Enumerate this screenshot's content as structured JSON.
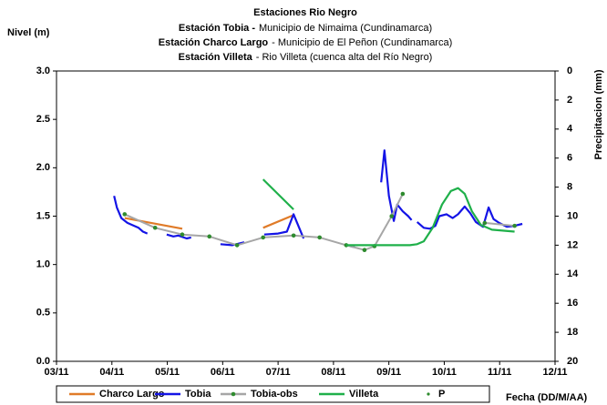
{
  "chart_data": {
    "type": "line",
    "title": "Estaciones Rio Negro",
    "subtitle": [
      {
        "station": "Estación Tobia -",
        "place": "Municipio de Nimaima (Cundinamarca)"
      },
      {
        "station": "Estación Charco Largo",
        "place": "- Municipio de El Peñon (Cundinamarca)"
      },
      {
        "station": "Estación Villeta",
        "place": "-  Rio Villeta (cuenca alta del Río Negro)"
      }
    ],
    "y_label": "Nivel (m)",
    "y2_label": "Precipitacion (mm)",
    "x_label": "Fecha (DD/M/AA)",
    "xlim": [
      3,
      12
    ],
    "xticks": [
      {
        "value": 3,
        "label": "03/11"
      },
      {
        "value": 4,
        "label": "04/11"
      },
      {
        "value": 5,
        "label": "05/11"
      },
      {
        "value": 6,
        "label": "06/11"
      },
      {
        "value": 7,
        "label": "07/11"
      },
      {
        "value": 8,
        "label": "08/11"
      },
      {
        "value": 9,
        "label": "09/11"
      },
      {
        "value": 10,
        "label": "10/11"
      },
      {
        "value": 11,
        "label": "11/11"
      },
      {
        "value": 12,
        "label": "12/11"
      }
    ],
    "ylim": [
      0,
      3
    ],
    "yticks": [
      {
        "value": 0,
        "label": "0.0"
      },
      0.5,
      {
        "value": 1,
        "label": "1.0"
      },
      1.5,
      {
        "value": 2,
        "label": "2.0"
      },
      2.5,
      {
        "value": 3,
        "label": "3.0"
      }
    ],
    "y2lim": [
      0,
      20
    ],
    "y2_inverted": true,
    "y2ticks": [
      0,
      2,
      4,
      6,
      8,
      10,
      12,
      14,
      16,
      18,
      20
    ],
    "series": [
      {
        "name": "Charco Largo",
        "color": "#e07b28",
        "x": [
          4.23,
          5.27,
          null,
          6.73,
          7.28
        ],
        "values": [
          1.48,
          1.37,
          null,
          1.38,
          1.51
        ]
      },
      {
        "name": "Tobia",
        "color": "#1414e6",
        "x": [
          4.04,
          4.09,
          4.17,
          4.28,
          4.4,
          4.48,
          4.56,
          4.64,
          null,
          4.99,
          5.11,
          5.2,
          5.35,
          5.43,
          null,
          5.96,
          6.17,
          6.39,
          null,
          6.75,
          7.0,
          7.16,
          7.28,
          7.46,
          null,
          8.31,
          8.38,
          null,
          8.86,
          8.92,
          9.0,
          9.09,
          9.15,
          9.25,
          9.35,
          9.41,
          null,
          9.51,
          9.63,
          9.74,
          9.84,
          9.91,
          10.04,
          10.15,
          10.25,
          10.37,
          10.47,
          10.57,
          10.7,
          10.8,
          10.89,
          10.99,
          11.13,
          11.27,
          11.41
        ],
        "values": [
          1.71,
          1.59,
          1.48,
          1.43,
          1.4,
          1.38,
          1.34,
          1.32,
          null,
          1.31,
          1.29,
          1.3,
          1.27,
          1.28,
          null,
          1.21,
          1.2,
          1.23,
          null,
          1.31,
          1.32,
          1.34,
          1.52,
          1.27,
          null,
          1.19,
          1.18,
          null,
          1.85,
          2.18,
          1.71,
          1.45,
          1.62,
          1.55,
          1.5,
          1.46,
          null,
          1.44,
          1.38,
          1.37,
          1.4,
          1.5,
          1.52,
          1.48,
          1.52,
          1.6,
          1.53,
          1.44,
          1.39,
          1.59,
          1.47,
          1.43,
          1.39,
          1.4,
          1.42
        ]
      },
      {
        "name": "Tobia-obs",
        "color": "#a6a6a6",
        "marker_color": "#2e8b2e",
        "x": [
          4.23,
          4.78,
          5.27,
          5.76,
          6.26,
          6.73,
          7.28,
          7.75,
          8.23,
          8.56,
          8.74,
          9.05,
          9.25,
          null,
          10.73,
          11.27
        ],
        "values": [
          1.52,
          1.38,
          1.31,
          1.29,
          1.2,
          1.28,
          1.3,
          1.28,
          1.2,
          1.15,
          1.19,
          1.5,
          1.73,
          null,
          1.43,
          1.4
        ]
      },
      {
        "name": "Villeta",
        "color": "#1fb04a",
        "x": [
          6.73,
          7.28,
          null,
          8.23,
          8.89,
          9.38,
          9.51,
          9.63,
          9.79,
          9.96,
          10.12,
          10.25,
          10.37,
          10.5,
          10.66,
          10.86,
          11.27
        ],
        "values": [
          1.88,
          1.57,
          null,
          1.2,
          1.2,
          1.2,
          1.21,
          1.24,
          1.38,
          1.62,
          1.76,
          1.79,
          1.73,
          1.55,
          1.41,
          1.36,
          1.34
        ]
      },
      {
        "name": "P",
        "color": "#2e8b2e",
        "axis": "y2",
        "x": [],
        "values": []
      }
    ]
  }
}
